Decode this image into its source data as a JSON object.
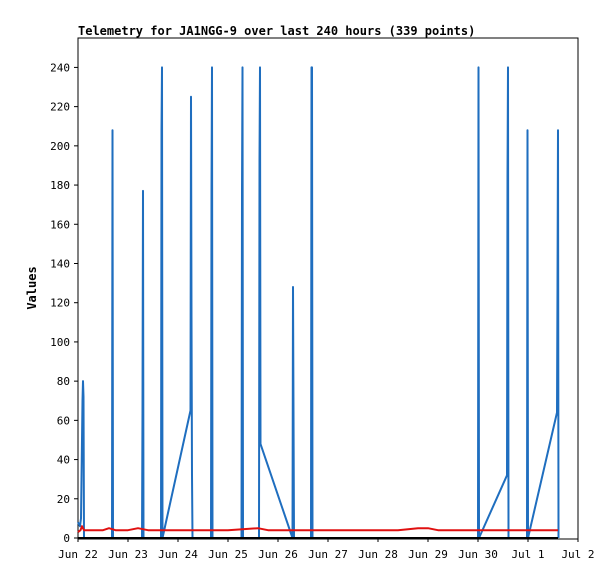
{
  "chart_data": {
    "type": "line",
    "title": "Telemetry for JA1NGG-9 over last 240 hours (339 points)",
    "xlabel": "",
    "ylabel": "Values",
    "ylim": [
      0,
      255
    ],
    "xlim": [
      0,
      10
    ],
    "grid": false,
    "legend": "none",
    "x_ticks": [
      {
        "value": 0,
        "label": "Jun 22"
      },
      {
        "value": 1,
        "label": "Jun 23"
      },
      {
        "value": 2,
        "label": "Jun 24"
      },
      {
        "value": 3,
        "label": "Jun 25"
      },
      {
        "value": 4,
        "label": "Jun 26"
      },
      {
        "value": 5,
        "label": "Jun 27"
      },
      {
        "value": 6,
        "label": "Jun 28"
      },
      {
        "value": 7,
        "label": "Jun 29"
      },
      {
        "value": 8,
        "label": "Jun 30"
      },
      {
        "value": 9,
        "label": "Jul 1"
      },
      {
        "value": 10,
        "label": "Jul 2"
      }
    ],
    "y_ticks": [
      0,
      20,
      40,
      60,
      80,
      100,
      120,
      140,
      160,
      180,
      200,
      220,
      240
    ],
    "series": [
      {
        "color": "#1f6ebf",
        "x": [
          0.0,
          0.05,
          0.06,
          0.07,
          0.08,
          0.09,
          0.1,
          0.11,
          0.12,
          0.13,
          0.14,
          0.15,
          0.16,
          0.17,
          0.18,
          0.19,
          0.2,
          0.21,
          0.22,
          0.23,
          0.24,
          0.25,
          0.26,
          0.27,
          0.28,
          0.29,
          0.3,
          0.31,
          0.32,
          0.33,
          0.34,
          0.35,
          0.36,
          0.37,
          0.38,
          0.39,
          0.4,
          0.41,
          0.42,
          0.43,
          0.44,
          0.45,
          0.46,
          0.47,
          0.48,
          0.49,
          0.5,
          0.51,
          0.52,
          0.53,
          0.54,
          0.55,
          0.56,
          0.57,
          0.58,
          0.59,
          0.6,
          0.61,
          0.62,
          0.63,
          0.64,
          0.65,
          0.66,
          0.67,
          0.68,
          0.69,
          0.7,
          0.71,
          0.72,
          0.73,
          0.74,
          0.75,
          0.76,
          0.77,
          0.78,
          0.79,
          0.8,
          0.81,
          0.82,
          0.83,
          0.84,
          0.85,
          0.86,
          0.87,
          0.88,
          0.89,
          0.9,
          0.91,
          0.92,
          0.93,
          0.94,
          0.95,
          0.96,
          0.97,
          0.98,
          0.99,
          1.0,
          1.01,
          1.02,
          1.03,
          1.04,
          1.05,
          1.06,
          1.07,
          1.08,
          1.09,
          1.1,
          1.11,
          1.12,
          1.13,
          1.14,
          1.15,
          1.16,
          1.17,
          1.18,
          1.19,
          1.2,
          1.21,
          1.22,
          1.23,
          1.24,
          1.25,
          1.26,
          1.27,
          1.28,
          1.29,
          1.3,
          1.31,
          1.32,
          1.33,
          1.34,
          1.35,
          1.36,
          1.37,
          1.38,
          1.39,
          1.4,
          1.41,
          1.42,
          1.43,
          1.44,
          1.45,
          1.46,
          1.47,
          1.48,
          1.49,
          1.5,
          1.51,
          1.52,
          1.53,
          1.54,
          1.55,
          1.56,
          1.57,
          1.58,
          1.59,
          1.6,
          1.61,
          1.62,
          1.63,
          1.64,
          1.65,
          1.66,
          1.67,
          1.68,
          1.69,
          1.7,
          1.71,
          1.72,
          1.73,
          1.74,
          1.75,
          1.76,
          1.77,
          1.78,
          1.79,
          1.8,
          1.81,
          1.82,
          1.83,
          1.84,
          1.85,
          1.86,
          1.87,
          1.88,
          1.89,
          1.9,
          1.91,
          1.92,
          1.93,
          1.94,
          1.95,
          1.96,
          1.97,
          1.98,
          1.99,
          2.0,
          2.01,
          2.02,
          2.03,
          2.04,
          2.05,
          2.06,
          2.07,
          2.08,
          2.09,
          2.1,
          2.11,
          2.12,
          2.13,
          2.14,
          2.15,
          2.16,
          2.17,
          2.18,
          2.19,
          2.2,
          2.21,
          2.22,
          2.23,
          2.24,
          2.25,
          2.26,
          2.27,
          2.28,
          2.29,
          2.3,
          2.31,
          2.32,
          2.33,
          2.34,
          2.35,
          2.36,
          2.37,
          2.38,
          2.39,
          2.4,
          2.41,
          2.42,
          2.43,
          2.44,
          2.45,
          2.46,
          2.47,
          2.48,
          2.49,
          2.5,
          2.51,
          2.52,
          2.53,
          2.54,
          2.55,
          2.56,
          2.57,
          2.58,
          2.59,
          2.6,
          2.61,
          2.62,
          2.63,
          2.64,
          2.65,
          2.66,
          2.67,
          2.68,
          2.69,
          2.7,
          2.71,
          2.72,
          2.73,
          2.74,
          2.75,
          2.76,
          2.77,
          2.78,
          2.79,
          2.8,
          2.81,
          2.82,
          2.83,
          2.84,
          2.85,
          2.86,
          2.87,
          2.88,
          2.89,
          2.9,
          2.91,
          2.92,
          2.93,
          2.94,
          2.95,
          2.96,
          2.97,
          2.98,
          2.99,
          3.0,
          3.01,
          3.02,
          3.03,
          3.04,
          3.05,
          3.06,
          3.07,
          3.08,
          3.09,
          3.1,
          3.11,
          3.12,
          3.13,
          3.14,
          3.15,
          3.16,
          3.17,
          3.18,
          3.19,
          3.2,
          3.21,
          3.22,
          3.23,
          3.24,
          3.25,
          3.26,
          3.27,
          3.28,
          3.29,
          3.3,
          3.31,
          3.32,
          3.33,
          3.34,
          3.35,
          3.36,
          3.37,
          3.38,
          3.39
        ],
        "values_note": "",
        "points": [
          [
            0.0,
            8
          ],
          [
            0.04,
            6
          ],
          [
            0.06,
            10
          ],
          [
            0.07,
            30
          ],
          [
            0.08,
            50
          ],
          [
            0.09,
            70
          ],
          [
            0.1,
            80
          ],
          [
            0.11,
            72
          ],
          [
            0.12,
            0
          ],
          [
            0.68,
            0
          ],
          [
            0.69,
            208
          ],
          [
            0.7,
            0
          ],
          [
            1.28,
            0
          ],
          [
            1.29,
            65
          ],
          [
            1.3,
            177
          ],
          [
            1.31,
            0
          ],
          [
            1.66,
            0
          ],
          [
            1.67,
            208
          ],
          [
            1.68,
            240
          ],
          [
            1.69,
            0
          ],
          [
            2.25,
            65
          ],
          [
            2.26,
            225
          ],
          [
            2.27,
            112
          ],
          [
            2.28,
            32
          ],
          [
            2.29,
            0
          ],
          [
            2.66,
            0
          ],
          [
            2.67,
            177
          ],
          [
            2.68,
            240
          ],
          [
            2.69,
            0
          ],
          [
            3.27,
            0
          ],
          [
            3.28,
            177
          ],
          [
            3.29,
            240
          ],
          [
            3.3,
            0
          ],
          [
            3.62,
            0
          ],
          [
            3.63,
            192
          ],
          [
            3.64,
            240
          ],
          [
            3.65,
            48
          ],
          [
            4.29,
            0
          ],
          [
            4.3,
            128
          ],
          [
            4.31,
            64
          ],
          [
            4.32,
            0
          ],
          [
            4.66,
            0
          ],
          [
            4.67,
            240
          ],
          [
            4.68,
            240
          ],
          [
            4.69,
            0
          ],
          [
            8.0,
            0
          ],
          [
            8.01,
            240
          ],
          [
            8.02,
            0
          ],
          [
            8.58,
            32
          ],
          [
            8.59,
            184
          ],
          [
            8.6,
            240
          ],
          [
            8.61,
            0
          ],
          [
            8.98,
            0
          ],
          [
            8.99,
            208
          ],
          [
            9.0,
            0
          ],
          [
            9.58,
            64
          ],
          [
            9.59,
            128
          ],
          [
            9.6,
            208
          ],
          [
            9.61,
            0
          ]
        ]
      },
      {
        "color": "#e01010",
        "points": [
          [
            0.0,
            3
          ],
          [
            0.05,
            4
          ],
          [
            0.08,
            6
          ],
          [
            0.12,
            4
          ],
          [
            0.3,
            4
          ],
          [
            0.5,
            4
          ],
          [
            0.62,
            5
          ],
          [
            0.75,
            4
          ],
          [
            1.0,
            4
          ],
          [
            1.2,
            5
          ],
          [
            1.4,
            4
          ],
          [
            2.0,
            4
          ],
          [
            2.6,
            4
          ],
          [
            3.0,
            4
          ],
          [
            3.6,
            5
          ],
          [
            3.8,
            4
          ],
          [
            4.5,
            4
          ],
          [
            5.0,
            4
          ],
          [
            5.5,
            4
          ],
          [
            6.0,
            4
          ],
          [
            6.4,
            4
          ],
          [
            6.8,
            5
          ],
          [
            7.0,
            5
          ],
          [
            7.2,
            4
          ],
          [
            7.6,
            4
          ],
          [
            8.0,
            4
          ],
          [
            8.5,
            4
          ],
          [
            9.0,
            4
          ],
          [
            9.6,
            4
          ]
        ]
      },
      {
        "color": "#000000",
        "points": [
          [
            0.0,
            0
          ],
          [
            0.05,
            0
          ],
          [
            0.1,
            0
          ],
          [
            9.6,
            0
          ]
        ]
      }
    ]
  }
}
